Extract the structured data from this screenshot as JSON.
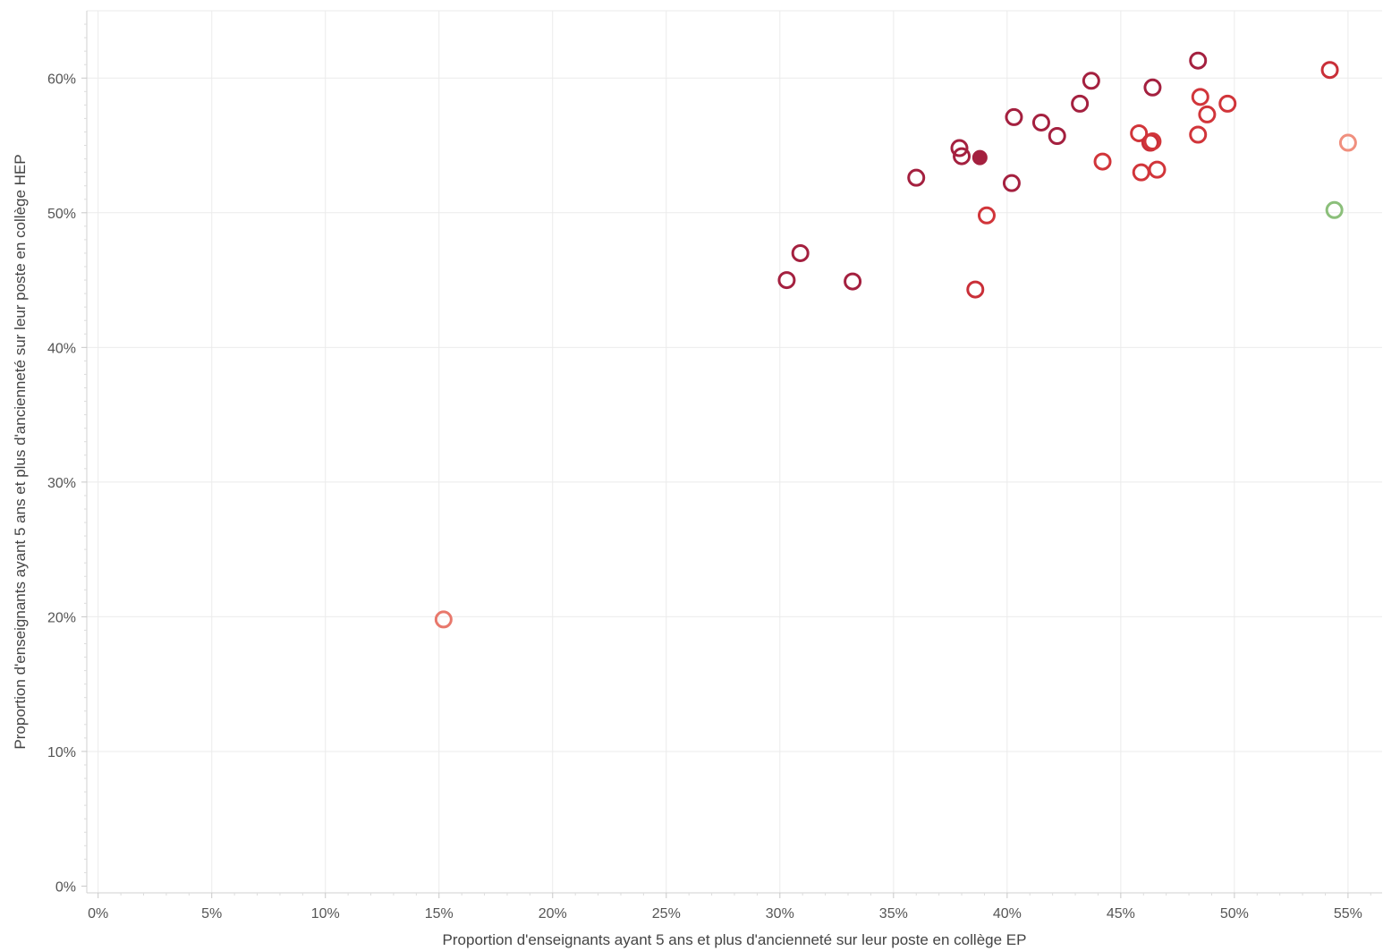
{
  "chart_data": {
    "type": "scatter",
    "title": "",
    "xlabel": "Proportion d'enseignants ayant 5 ans et plus d'ancienneté sur leur poste en collège EP",
    "ylabel": "Proportion d'enseignants ayant 5 ans et plus d'ancienneté sur leur poste en collège HEP",
    "xlim": [
      -0.5,
      56.5
    ],
    "ylim": [
      -0.5,
      65
    ],
    "x_ticks": [
      "0%",
      "5%",
      "10%",
      "15%",
      "20%",
      "25%",
      "30%",
      "35%",
      "40%",
      "45%",
      "50%",
      "55%"
    ],
    "y_ticks": [
      "0%",
      "10%",
      "20%",
      "30%",
      "40%",
      "50%",
      "60%"
    ],
    "grid": true,
    "points": [
      {
        "x": 15.2,
        "y": 19.8,
        "color": "#e8786c",
        "filled": false
      },
      {
        "x": 30.3,
        "y": 45.0,
        "color": "#a4203f",
        "filled": false
      },
      {
        "x": 30.9,
        "y": 47.0,
        "color": "#a4203f",
        "filled": false
      },
      {
        "x": 33.2,
        "y": 44.9,
        "color": "#a4203f",
        "filled": false
      },
      {
        "x": 36.0,
        "y": 52.6,
        "color": "#a4203f",
        "filled": false
      },
      {
        "x": 37.9,
        "y": 54.8,
        "color": "#a4203f",
        "filled": false
      },
      {
        "x": 38.0,
        "y": 54.2,
        "color": "#a4203f",
        "filled": false
      },
      {
        "x": 38.8,
        "y": 54.1,
        "color": "#a4203f",
        "filled": true
      },
      {
        "x": 38.6,
        "y": 44.3,
        "color": "#c92f38",
        "filled": false
      },
      {
        "x": 39.1,
        "y": 49.8,
        "color": "#d1353a",
        "filled": false
      },
      {
        "x": 40.2,
        "y": 52.2,
        "color": "#a4203f",
        "filled": false
      },
      {
        "x": 40.3,
        "y": 57.1,
        "color": "#a4203f",
        "filled": false
      },
      {
        "x": 41.5,
        "y": 56.7,
        "color": "#a4203f",
        "filled": false
      },
      {
        "x": 42.2,
        "y": 55.7,
        "color": "#a4203f",
        "filled": false
      },
      {
        "x": 43.2,
        "y": 58.1,
        "color": "#a4203f",
        "filled": false
      },
      {
        "x": 43.7,
        "y": 59.8,
        "color": "#a4203f",
        "filled": false
      },
      {
        "x": 44.2,
        "y": 53.8,
        "color": "#d1353a",
        "filled": false
      },
      {
        "x": 45.8,
        "y": 55.9,
        "color": "#d1353a",
        "filled": false
      },
      {
        "x": 45.9,
        "y": 53.0,
        "color": "#d1353a",
        "filled": false
      },
      {
        "x": 46.3,
        "y": 55.2,
        "color": "#c92f38",
        "filled": false
      },
      {
        "x": 46.4,
        "y": 55.3,
        "color": "#d1353a",
        "filled": false
      },
      {
        "x": 46.4,
        "y": 59.3,
        "color": "#a4203f",
        "filled": false
      },
      {
        "x": 46.6,
        "y": 53.2,
        "color": "#d1353a",
        "filled": false
      },
      {
        "x": 48.4,
        "y": 61.3,
        "color": "#a4203f",
        "filled": false
      },
      {
        "x": 48.4,
        "y": 55.8,
        "color": "#d1353a",
        "filled": false
      },
      {
        "x": 48.5,
        "y": 58.6,
        "color": "#d1353a",
        "filled": false
      },
      {
        "x": 48.8,
        "y": 57.3,
        "color": "#d1353a",
        "filled": false
      },
      {
        "x": 49.7,
        "y": 58.1,
        "color": "#d1353a",
        "filled": false
      },
      {
        "x": 54.2,
        "y": 60.6,
        "color": "#c92f38",
        "filled": false
      },
      {
        "x": 54.4,
        "y": 50.2,
        "color": "#8bbf7a",
        "filled": false
      },
      {
        "x": 55.0,
        "y": 55.2,
        "color": "#f08f7e",
        "filled": false
      }
    ]
  }
}
